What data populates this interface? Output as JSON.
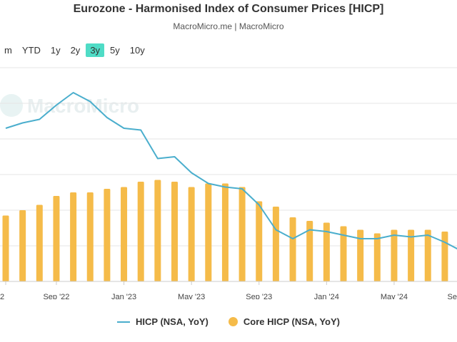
{
  "header": {
    "title": "Eurozone - Harmonised Index of Consumer Prices [HICP]",
    "subtitle": "MacroMicro.me | MacroMicro"
  },
  "range_selector": {
    "buttons": [
      "m",
      "YTD",
      "1y",
      "2y",
      "3y",
      "5y",
      "10y"
    ],
    "active": "3y"
  },
  "watermark": "MacroMicro",
  "colors": {
    "hicp": "#4aaecd",
    "core": "#f5bb49",
    "grid": "#e6e6e6",
    "active_button": "#4fdcc6"
  },
  "legend": {
    "hicp": "HICP (NSA, YoY)",
    "core": "Core HICP (NSA, YoY)"
  },
  "chart_data": {
    "type": "bar+line",
    "title": "Eurozone - Harmonised Index of Consumer Prices [HICP]",
    "categories": [
      "2022-06",
      "2022-07",
      "2022-08",
      "2022-09",
      "2022-10",
      "2022-11",
      "2022-12",
      "2023-01",
      "2023-02",
      "2023-03",
      "2023-04",
      "2023-05",
      "2023-06",
      "2023-07",
      "2023-08",
      "2023-09",
      "2023-10",
      "2023-11",
      "2023-12",
      "2024-01",
      "2024-02",
      "2024-03",
      "2024-04",
      "2024-05",
      "2024-06",
      "2024-07",
      "2024-08",
      "2024-09"
    ],
    "x_tick_labels": [
      {
        "category": "2022-06",
        "label": "2"
      },
      {
        "category": "2022-09",
        "label": "Sep '22"
      },
      {
        "category": "2023-01",
        "label": "Jan '23"
      },
      {
        "category": "2023-05",
        "label": "May '23"
      },
      {
        "category": "2023-09",
        "label": "Sep '23"
      },
      {
        "category": "2024-01",
        "label": "Jan '24"
      },
      {
        "category": "2024-05",
        "label": "May '24"
      },
      {
        "category": "2024-09",
        "label": "Se"
      }
    ],
    "ylim": [
      0,
      12
    ],
    "y_gridlines": [
      0,
      2,
      4,
      6,
      8,
      10,
      12
    ],
    "series": [
      {
        "name": "Core HICP (NSA, YoY)",
        "type": "bar",
        "values": [
          3.7,
          4.0,
          4.3,
          4.8,
          5.0,
          5.0,
          5.2,
          5.3,
          5.6,
          5.7,
          5.6,
          5.3,
          5.5,
          5.5,
          5.3,
          4.5,
          4.2,
          3.6,
          3.4,
          3.3,
          3.1,
          2.9,
          2.7,
          2.9,
          2.9,
          2.9,
          2.8,
          2.7
        ]
      },
      {
        "name": "HICP (NSA, YoY)",
        "type": "line",
        "values": [
          8.6,
          8.9,
          9.1,
          9.9,
          10.6,
          10.1,
          9.2,
          8.6,
          8.5,
          6.9,
          7.0,
          6.1,
          5.5,
          5.3,
          5.2,
          4.3,
          2.9,
          2.4,
          2.9,
          2.8,
          2.6,
          2.4,
          2.4,
          2.6,
          2.5,
          2.6,
          2.2,
          1.7
        ]
      }
    ],
    "legend_position": "bottom",
    "grid": true
  }
}
